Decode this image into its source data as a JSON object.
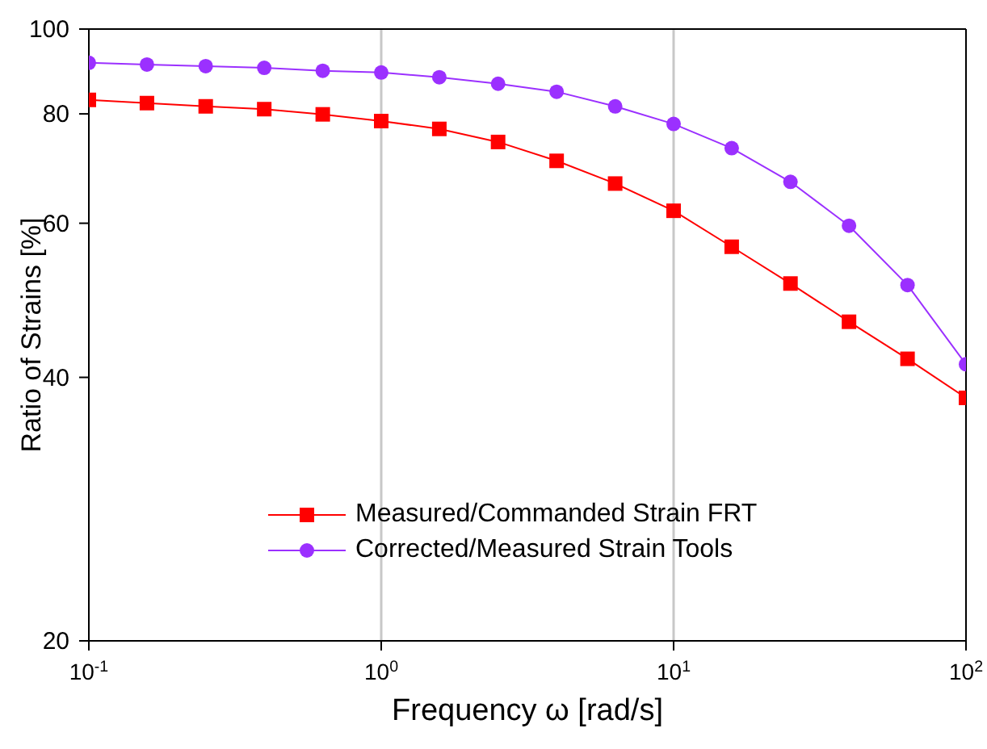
{
  "chart_data": {
    "type": "line",
    "xlabel": "Frequency ω [rad/s]",
    "ylabel": "Ratio of Strains [%]",
    "log": "xy",
    "xlim": [
      0.1,
      100
    ],
    "xticks": [
      {
        "value": 0.1,
        "label": "10$^{-1}$"
      },
      {
        "value": 1,
        "label": "10$^{0}$"
      },
      {
        "value": 10,
        "label": "10$^{1}$"
      },
      {
        "value": 100,
        "label": "10$^{2}$"
      }
    ],
    "ylim": [
      20,
      100
    ],
    "yticks": [
      20,
      40,
      60,
      80,
      100
    ],
    "grid": "x",
    "legend": "bottom",
    "line_style": "solid",
    "x": [
      0.1,
      0.158,
      0.251,
      0.398,
      0.631,
      1,
      1.58,
      2.51,
      3.98,
      6.31,
      10,
      15.8,
      25.1,
      39.8,
      63.1,
      100
    ],
    "series": [
      {
        "name": "Measured/Commanded Strain FRT",
        "color": "#ff0000",
        "marker": "square",
        "values": [
          83.0,
          82.3,
          81.6,
          81.0,
          79.9,
          78.5,
          76.9,
          74.3,
          70.7,
          66.6,
          62.0,
          56.4,
          51.2,
          46.3,
          42.0,
          37.9
        ]
      },
      {
        "name": "Corrected/Measured Strain Tools",
        "color": "#9b30ff",
        "marker": "circle",
        "values": [
          91.5,
          91.1,
          90.7,
          90.3,
          89.6,
          89.2,
          88.1,
          86.6,
          84.8,
          81.6,
          77.9,
          73.1,
          66.9,
          59.6,
          51.0,
          41.4
        ]
      }
    ]
  }
}
